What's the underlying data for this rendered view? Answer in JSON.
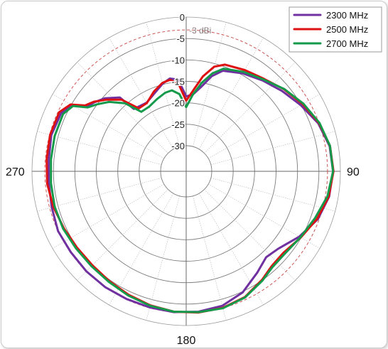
{
  "chart_data": {
    "type": "polar-line",
    "unit": "dBi",
    "r_ticks": [
      0,
      -5,
      -10,
      -15,
      -20,
      -25,
      -30
    ],
    "r_range": [
      -30,
      0
    ],
    "angle_labels": [
      "90",
      "180",
      "270"
    ],
    "reference": {
      "value": -3,
      "label": "-3 dBi",
      "color": "#cc5555"
    },
    "legend": {
      "placement": "top-right"
    },
    "series": [
      {
        "name": "2300 MHz",
        "color": "#7030a0",
        "points": [
          [
            0,
            -18.5
          ],
          [
            5,
            -18
          ],
          [
            10,
            -16
          ],
          [
            15,
            -13
          ],
          [
            20,
            -11
          ],
          [
            30,
            -9.6
          ],
          [
            40,
            -8.3
          ],
          [
            50,
            -6.8
          ],
          [
            60,
            -5.1
          ],
          [
            70,
            -3.2
          ],
          [
            80,
            -2.0
          ],
          [
            90,
            -1.7
          ],
          [
            100,
            -2.1
          ],
          [
            110,
            -3.3
          ],
          [
            120,
            -5.5
          ],
          [
            130,
            -7.9
          ],
          [
            137,
            -8.6
          ],
          [
            145,
            -7.1
          ],
          [
            155,
            -4.8
          ],
          [
            165,
            -3.5
          ],
          [
            175,
            -3.1
          ],
          [
            185,
            -3.0
          ],
          [
            195,
            -3.1
          ],
          [
            205,
            -3.1
          ],
          [
            215,
            -3.0
          ],
          [
            225,
            -3.0
          ],
          [
            235,
            -3.1
          ],
          [
            245,
            -3.0
          ],
          [
            255,
            -3.5
          ],
          [
            265,
            -3.8
          ],
          [
            275,
            -3.8
          ],
          [
            285,
            -3.4
          ],
          [
            295,
            -3.8
          ],
          [
            300,
            -5.2
          ],
          [
            303,
            -8.3
          ],
          [
            307,
            -9.2
          ],
          [
            312,
            -10.5
          ],
          [
            318,
            -12.8
          ],
          [
            320,
            -17.0
          ],
          [
            330,
            -17.5
          ],
          [
            338,
            -16.3
          ],
          [
            345,
            -14.8
          ],
          [
            350,
            -14.0
          ],
          [
            355,
            -14.5
          ],
          [
            360,
            -18.5
          ]
        ]
      },
      {
        "name": "2500 MHz",
        "color": "#dd1111",
        "points": [
          [
            0,
            -19.5
          ],
          [
            5,
            -17
          ],
          [
            10,
            -13.5
          ],
          [
            15,
            -10.7
          ],
          [
            20,
            -9.5
          ],
          [
            30,
            -8.7
          ],
          [
            40,
            -7.8
          ],
          [
            50,
            -6.2
          ],
          [
            60,
            -4.6
          ],
          [
            70,
            -3.0
          ],
          [
            80,
            -1.9
          ],
          [
            90,
            -1.6
          ],
          [
            100,
            -2.2
          ],
          [
            110,
            -3.5
          ],
          [
            120,
            -5.1
          ],
          [
            130,
            -6.4
          ],
          [
            138,
            -6.2
          ],
          [
            145,
            -5.1
          ],
          [
            155,
            -3.6
          ],
          [
            165,
            -3.0
          ],
          [
            175,
            -2.9
          ],
          [
            185,
            -3.1
          ],
          [
            195,
            -3.6
          ],
          [
            205,
            -4.2
          ],
          [
            215,
            -4.7
          ],
          [
            225,
            -5.0
          ],
          [
            235,
            -4.9
          ],
          [
            245,
            -4.5
          ],
          [
            255,
            -3.9
          ],
          [
            265,
            -3.4
          ],
          [
            275,
            -3.3
          ],
          [
            285,
            -3.1
          ],
          [
            295,
            -3.3
          ],
          [
            300,
            -4.8
          ],
          [
            303,
            -7.8
          ],
          [
            307,
            -9.0
          ],
          [
            312,
            -11.0
          ],
          [
            318,
            -13.5
          ],
          [
            323,
            -17.6
          ],
          [
            330,
            -17.6
          ],
          [
            338,
            -15.9
          ],
          [
            345,
            -14.6
          ],
          [
            350,
            -14.3
          ],
          [
            355,
            -15.5
          ],
          [
            360,
            -19.5
          ]
        ]
      },
      {
        "name": "2700 MHz",
        "color": "#149a4a",
        "points": [
          [
            0,
            -21.0
          ],
          [
            5,
            -18
          ],
          [
            10,
            -15
          ],
          [
            15,
            -12.3
          ],
          [
            20,
            -10.5
          ],
          [
            30,
            -9.2
          ],
          [
            40,
            -8.0
          ],
          [
            50,
            -6.1
          ],
          [
            60,
            -4.4
          ],
          [
            70,
            -2.9
          ],
          [
            80,
            -1.9
          ],
          [
            90,
            -1.7
          ],
          [
            100,
            -2.5
          ],
          [
            110,
            -4.0
          ],
          [
            120,
            -5.2
          ],
          [
            130,
            -6.0
          ],
          [
            138,
            -5.9
          ],
          [
            145,
            -4.9
          ],
          [
            155,
            -3.5
          ],
          [
            165,
            -2.9
          ],
          [
            175,
            -3.0
          ],
          [
            185,
            -3.1
          ],
          [
            195,
            -3.5
          ],
          [
            205,
            -4.0
          ],
          [
            215,
            -4.5
          ],
          [
            225,
            -4.7
          ],
          [
            235,
            -4.6
          ],
          [
            245,
            -4.3
          ],
          [
            255,
            -4.2
          ],
          [
            265,
            -4.3
          ],
          [
            275,
            -4.3
          ],
          [
            285,
            -4.2
          ],
          [
            295,
            -4.3
          ],
          [
            300,
            -5.5
          ],
          [
            303,
            -8.6
          ],
          [
            307,
            -10.0
          ],
          [
            312,
            -11.8
          ],
          [
            318,
            -14.6
          ],
          [
            323,
            -18.6
          ],
          [
            330,
            -18.6
          ],
          [
            338,
            -17.8
          ],
          [
            345,
            -17.0
          ],
          [
            350,
            -16.8
          ],
          [
            355,
            -17.9
          ],
          [
            360,
            -21.0
          ]
        ]
      }
    ]
  }
}
